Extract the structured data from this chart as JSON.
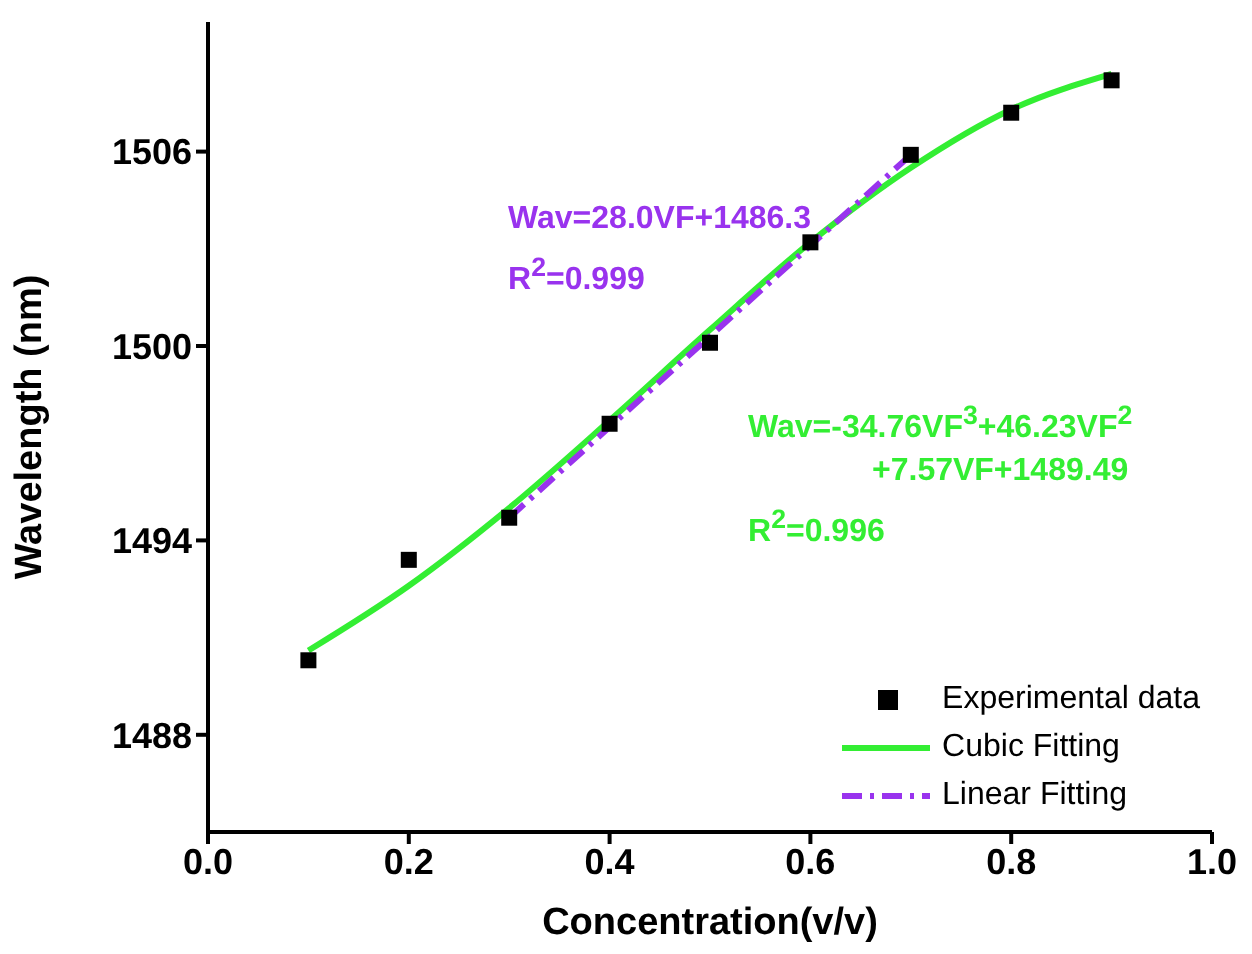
{
  "chart_data": {
    "type": "scatter",
    "xlabel": "Concentration(v/v)",
    "ylabel": "Wavelength (nm)",
    "x": [
      0.1,
      0.2,
      0.3,
      0.4,
      0.5,
      0.6,
      0.7,
      0.8,
      0.9
    ],
    "series": [
      {
        "name": "Experimental data",
        "color": "#000000",
        "marker": "square",
        "values": [
          1490.3,
          1493.4,
          1494.7,
          1497.6,
          1500.1,
          1503.2,
          1505.9,
          1507.2,
          1508.2
        ]
      },
      {
        "name": "Cubic Fitting",
        "type": "line",
        "color": "#33ee33",
        "line_style": "solid",
        "marker": "none",
        "x": [
          0.1,
          0.2,
          0.3,
          0.4,
          0.5,
          0.6,
          0.7,
          0.8,
          0.9
        ],
        "values": [
          1490.6,
          1492.6,
          1495.0,
          1497.7,
          1500.5,
          1503.2,
          1505.5,
          1507.3,
          1508.4
        ]
      },
      {
        "name": "Linear Fitting",
        "type": "line",
        "color": "#9933ee",
        "line_style": "dashed",
        "marker": "none",
        "x": [
          0.3,
          0.7
        ],
        "values": [
          1494.7,
          1505.9
        ]
      }
    ],
    "annotations": [
      "Wav=28.0VF+1486.3",
      "R$^{2}$=0.999",
      "Wav=-34.76VF$^{3}$+46.23VF$^{2}$",
      "+7.57VF+1489.49",
      "R$^{2}$=0.996"
    ],
    "xlim": [
      0,
      1
    ],
    "xticks": [
      {
        "value": 0,
        "label": "0.0"
      },
      0.2,
      0.4,
      0.6,
      0.8,
      {
        "value": 1,
        "label": "1.0"
      }
    ],
    "ylim": [
      1485,
      1510
    ],
    "yticks": [
      1488,
      1494,
      1500,
      1506
    ],
    "legend": "bottom right"
  }
}
